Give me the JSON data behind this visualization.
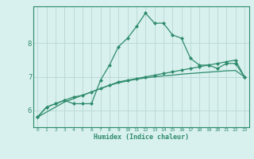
{
  "xlabel": "Humidex (Indice chaleur)",
  "x": [
    0,
    1,
    2,
    3,
    4,
    5,
    6,
    7,
    8,
    9,
    10,
    11,
    12,
    13,
    14,
    15,
    16,
    17,
    18,
    19,
    20,
    21,
    22,
    23
  ],
  "line1": [
    5.8,
    6.1,
    6.2,
    6.3,
    6.2,
    6.2,
    6.2,
    6.9,
    7.35,
    7.9,
    8.15,
    8.5,
    8.9,
    8.6,
    8.6,
    8.25,
    8.15,
    7.55,
    7.35,
    7.35,
    7.25,
    7.4,
    7.4,
    7.0
  ],
  "line2": [
    5.8,
    6.1,
    6.2,
    6.3,
    6.4,
    6.45,
    6.55,
    6.65,
    6.75,
    6.85,
    6.9,
    6.95,
    7.0,
    7.05,
    7.1,
    7.15,
    7.2,
    7.25,
    7.3,
    7.35,
    7.4,
    7.45,
    7.5,
    7.0
  ],
  "line3": [
    5.8,
    5.95,
    6.1,
    6.25,
    6.35,
    6.45,
    6.55,
    6.65,
    6.75,
    6.82,
    6.88,
    6.93,
    6.97,
    7.0,
    7.03,
    7.05,
    7.08,
    7.1,
    7.12,
    7.14,
    7.16,
    7.18,
    7.19,
    7.0
  ],
  "line_color": "#2e8b6b",
  "bg_color": "#d8f0ee",
  "grid_color": "#b8d8d4",
  "axis_color": "#2e8b6b",
  "tick_color": "#2e8b6b",
  "ylim": [
    5.5,
    9.1
  ],
  "xlim": [
    -0.5,
    23.5
  ],
  "yticks": [
    6,
    7,
    8
  ],
  "xticks": [
    0,
    1,
    2,
    3,
    4,
    5,
    6,
    7,
    8,
    9,
    10,
    11,
    12,
    13,
    14,
    15,
    16,
    17,
    18,
    19,
    20,
    21,
    22,
    23
  ]
}
